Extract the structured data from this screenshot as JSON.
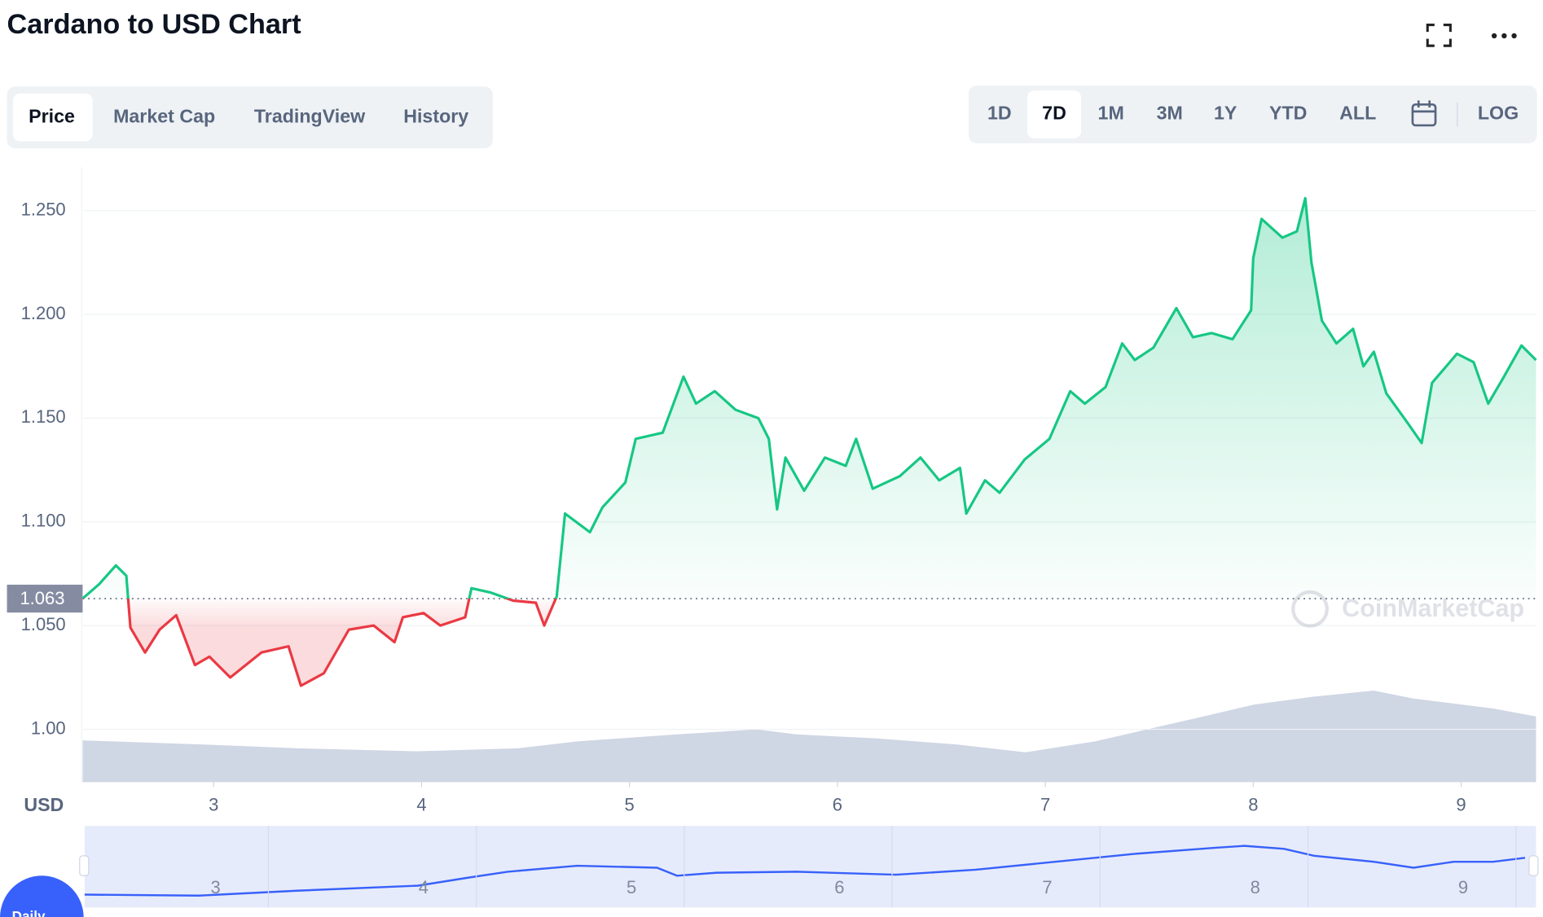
{
  "header": {
    "title": "Cardano to USD Chart"
  },
  "tabs": [
    "Price",
    "Market Cap",
    "TradingView",
    "History"
  ],
  "ranges": [
    "1D",
    "7D",
    "1M",
    "3M",
    "1Y",
    "YTD",
    "ALL",
    "LOG"
  ],
  "badge": "Daily",
  "chart_data": {
    "type": "line",
    "y_label": "USD",
    "watermark": "CoinMarketCap",
    "up_color": "#16c784",
    "down_color": "#ea3943",
    "reference": 1.063,
    "xlim": [
      2.37,
      9.36
    ],
    "xticks": [
      3,
      4,
      5,
      6,
      7,
      8,
      9
    ],
    "ylim": [
      0.975,
      1.27
    ],
    "yticks": [
      {
        "value": 1.0,
        "label": "1.00"
      },
      {
        "value": 1.05,
        "label": "1.050"
      },
      {
        "value": 1.1,
        "label": "1.100"
      },
      {
        "value": 1.15,
        "label": "1.150"
      },
      {
        "value": 1.2,
        "label": "1.200"
      },
      {
        "value": 1.25,
        "label": "1.250"
      }
    ],
    "grid": true,
    "x": [
      2.37,
      2.45,
      2.53,
      2.58,
      2.6,
      2.67,
      2.74,
      2.82,
      2.91,
      2.98,
      3.08,
      3.23,
      3.36,
      3.42,
      3.53,
      3.65,
      3.77,
      3.87,
      3.91,
      4.01,
      4.09,
      4.21,
      4.24,
      4.33,
      4.44,
      4.55,
      4.59,
      4.65,
      4.69,
      4.81,
      4.87,
      4.98,
      5.03,
      5.16,
      5.26,
      5.32,
      5.41,
      5.51,
      5.62,
      5.67,
      5.71,
      5.75,
      5.84,
      5.94,
      6.04,
      6.09,
      6.17,
      6.3,
      6.4,
      6.49,
      6.59,
      6.62,
      6.71,
      6.78,
      6.9,
      7.02,
      7.12,
      7.19,
      7.29,
      7.37,
      7.43,
      7.52,
      7.63,
      7.71,
      7.8,
      7.9,
      7.99,
      8.0,
      8.04,
      8.14,
      8.21,
      8.25,
      8.28,
      8.33,
      8.4,
      8.48,
      8.53,
      8.58,
      8.64,
      8.74,
      8.81,
      8.86,
      8.98,
      9.06,
      9.13,
      9.2,
      9.29,
      9.36
    ],
    "values": [
      1.063,
      1.07,
      1.079,
      1.074,
      1.049,
      1.037,
      1.048,
      1.055,
      1.031,
      1.035,
      1.025,
      1.037,
      1.04,
      1.021,
      1.027,
      1.048,
      1.05,
      1.042,
      1.054,
      1.056,
      1.05,
      1.054,
      1.068,
      1.066,
      1.062,
      1.061,
      1.05,
      1.064,
      1.104,
      1.095,
      1.107,
      1.119,
      1.14,
      1.143,
      1.17,
      1.157,
      1.163,
      1.154,
      1.15,
      1.14,
      1.106,
      1.131,
      1.115,
      1.131,
      1.127,
      1.14,
      1.116,
      1.122,
      1.131,
      1.12,
      1.126,
      1.104,
      1.12,
      1.114,
      1.13,
      1.14,
      1.163,
      1.157,
      1.165,
      1.186,
      1.178,
      1.184,
      1.203,
      1.189,
      1.191,
      1.188,
      1.202,
      1.227,
      1.246,
      1.237,
      1.24,
      1.256,
      1.225,
      1.197,
      1.186,
      1.193,
      1.175,
      1.182,
      1.162,
      1.148,
      1.138,
      1.167,
      1.181,
      1.177,
      1.157,
      1.169,
      1.185,
      1.178
    ]
  }
}
